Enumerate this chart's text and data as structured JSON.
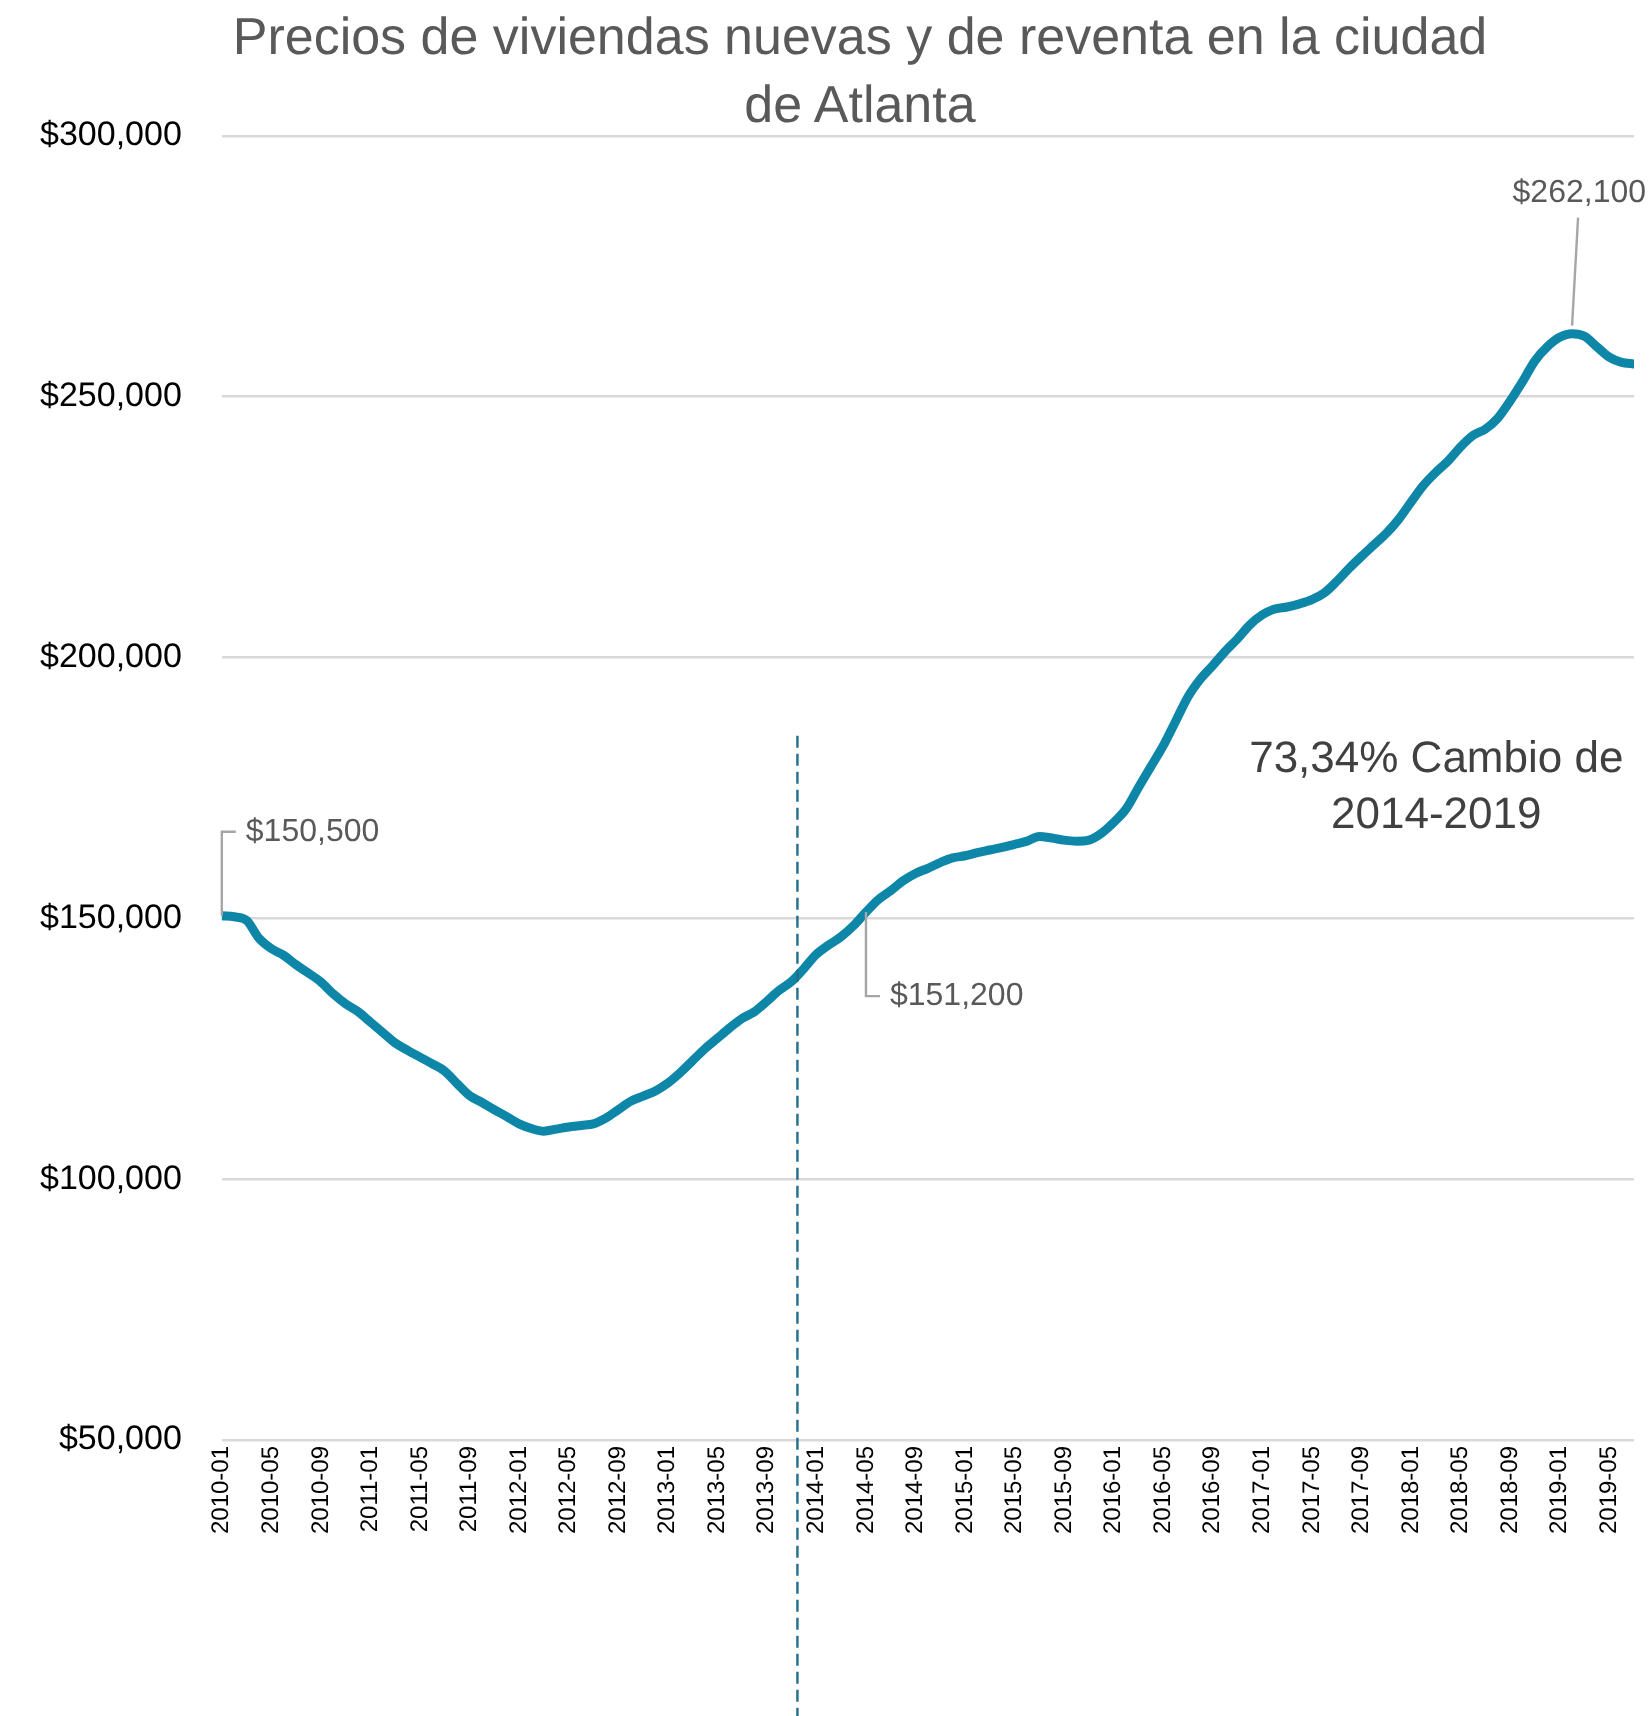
{
  "chart_data": {
    "type": "line",
    "title": "Precios de viviendas nuevas y de reventa en la ciudad de Atlanta",
    "x": [
      "2010-01",
      "2010-02",
      "2010-03",
      "2010-04",
      "2010-05",
      "2010-06",
      "2010-07",
      "2010-08",
      "2010-09",
      "2010-10",
      "2010-11",
      "2010-12",
      "2011-01",
      "2011-02",
      "2011-03",
      "2011-04",
      "2011-05",
      "2011-06",
      "2011-07",
      "2011-08",
      "2011-09",
      "2011-10",
      "2011-11",
      "2011-12",
      "2012-01",
      "2012-02",
      "2012-03",
      "2012-04",
      "2012-05",
      "2012-06",
      "2012-07",
      "2012-08",
      "2012-09",
      "2012-10",
      "2012-11",
      "2012-12",
      "2013-01",
      "2013-02",
      "2013-03",
      "2013-04",
      "2013-05",
      "2013-06",
      "2013-07",
      "2013-08",
      "2013-09",
      "2013-10",
      "2013-11",
      "2013-12",
      "2014-01",
      "2014-02",
      "2014-03",
      "2014-04",
      "2014-05",
      "2014-06",
      "2014-07",
      "2014-08",
      "2014-09",
      "2014-10",
      "2014-11",
      "2014-12",
      "2015-01",
      "2015-02",
      "2015-03",
      "2015-04",
      "2015-05",
      "2015-06",
      "2015-07",
      "2015-08",
      "2015-09",
      "2015-10",
      "2015-11",
      "2015-12",
      "2016-01",
      "2016-02",
      "2016-03",
      "2016-04",
      "2016-05",
      "2016-06",
      "2016-07",
      "2016-08",
      "2016-09",
      "2016-10",
      "2016-11",
      "2016-12",
      "2017-01",
      "2017-02",
      "2017-03",
      "2017-04",
      "2017-05",
      "2017-06",
      "2017-07",
      "2017-08",
      "2017-09",
      "2017-10",
      "2017-11",
      "2017-12",
      "2018-01",
      "2018-02",
      "2018-03",
      "2018-04",
      "2018-05",
      "2018-06",
      "2018-07",
      "2018-08",
      "2018-09",
      "2018-10",
      "2018-11",
      "2018-12",
      "2019-01",
      "2019-02",
      "2019-03",
      "2019-04",
      "2019-05",
      "2019-06",
      "2019-07"
    ],
    "series": [
      {
        "color": "#0e86a8",
        "values": [
          150500,
          150300,
          149600,
          146200,
          144200,
          142900,
          141100,
          139500,
          137800,
          135500,
          133600,
          132100,
          130100,
          128100,
          126100,
          124700,
          123400,
          122100,
          120700,
          118300,
          116000,
          114700,
          113300,
          112000,
          110600,
          109700,
          109200,
          109600,
          110000,
          110300,
          110600,
          111700,
          113300,
          114900,
          115900,
          116900,
          118400,
          120400,
          122700,
          125000,
          127000,
          129000,
          130800,
          132100,
          134100,
          136200,
          137900,
          140400,
          143100,
          144900,
          146500,
          148600,
          151200,
          153600,
          155300,
          157200,
          158600,
          159600,
          160700,
          161600,
          162000,
          162600,
          163100,
          163600,
          164200,
          164800,
          165700,
          165400,
          165000,
          164800,
          165000,
          166300,
          168400,
          171000,
          175100,
          179100,
          183100,
          187800,
          192500,
          195900,
          198500,
          201200,
          203600,
          206300,
          208200,
          209300,
          209700,
          210300,
          211100,
          212400,
          214600,
          217100,
          219400,
          221600,
          223800,
          226500,
          229800,
          233000,
          235500,
          237700,
          240400,
          242600,
          243800,
          245900,
          249200,
          252900,
          256900,
          259600,
          261400,
          262100,
          261600,
          259600,
          257600,
          256600,
          256300
        ]
      }
    ],
    "xlim": [
      "2010-01",
      "2019-07"
    ],
    "xticks": [
      "2010-01",
      "2010-05",
      "2010-09",
      "2011-01",
      "2011-05",
      "2011-09",
      "2012-01",
      "2012-05",
      "2012-09",
      "2013-01",
      "2013-05",
      "2013-09",
      "2014-01",
      "2014-05",
      "2014-09",
      "2015-01",
      "2015-05",
      "2015-09",
      "2016-01",
      "2016-05",
      "2016-09",
      "2017-01",
      "2017-05",
      "2017-09",
      "2018-01",
      "2018-05",
      "2018-09",
      "2019-01",
      "2019-05"
    ],
    "ylim": [
      50000,
      300000
    ],
    "yticks": [
      {
        "value": 50000,
        "label": "$50,000"
      },
      {
        "value": 100000,
        "label": "$100,000"
      },
      {
        "value": 150000,
        "label": "$150,000"
      },
      {
        "value": 200000,
        "label": "$200,000"
      },
      {
        "value": 250000,
        "label": "$250,000"
      },
      {
        "value": 300000,
        "label": "$300,000"
      }
    ],
    "ref_lines": [
      {
        "axis": "x",
        "value": "2013-11-15",
        "color": "#1f6f8b",
        "line_style": "dashed"
      }
    ],
    "annotations": [
      {
        "text": "$150,500",
        "x": "2010-01",
        "y": 150500
      },
      {
        "text": "$151,200",
        "x": "2014-05",
        "y": 151200
      },
      {
        "text": "$262,100",
        "x": "2019-02",
        "y": 262100
      },
      "73,34% Cambio de\n2014-2019"
    ],
    "grid": "y",
    "legend": false,
    "marker": "none",
    "line_style": "solid"
  }
}
